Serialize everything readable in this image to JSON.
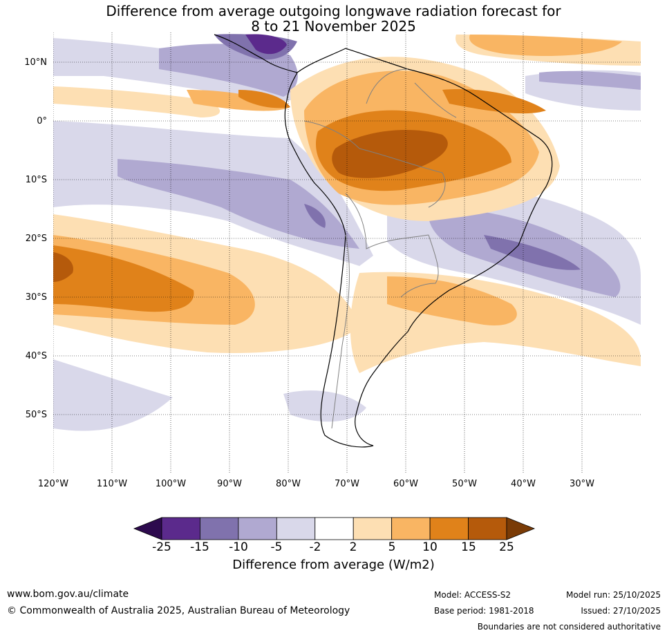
{
  "title": {
    "line1": "Difference from average outgoing longwave radiation forecast for",
    "line2": "8 to 21 November 2025"
  },
  "map": {
    "lat_labels": [
      "10°N",
      "0°",
      "10°S",
      "20°S",
      "30°S",
      "40°S",
      "50°S"
    ],
    "lon_labels": [
      "120°W",
      "110°W",
      "100°W",
      "90°W",
      "80°W",
      "70°W",
      "60°W",
      "50°W",
      "40°W",
      "30°W"
    ]
  },
  "colorbar": {
    "ticks": [
      "-25",
      "-15",
      "-10",
      "-5",
      "-2",
      "2",
      "5",
      "10",
      "15",
      "25"
    ],
    "colors": [
      "#2d0a4e",
      "#5b2a8c",
      "#8072ad",
      "#b0a9d1",
      "#d9d8ea",
      "#ffffff",
      "#fddfb3",
      "#f9b563",
      "#e0821a",
      "#b55a0b",
      "#7a3b06"
    ],
    "label": "Difference from average (W/m2)"
  },
  "footer": {
    "website": "www.bom.gov.au/climate",
    "copyright": "© Commonwealth of Australia 2025, Australian Bureau of Meteorology",
    "model": "Model: ACCESS-S2",
    "base_period": "Base period: 1981-2018",
    "model_run": "Model run: 25/10/2025",
    "issued": "Issued: 27/10/2025",
    "disclaimer": "Boundaries are not considered authoritative"
  }
}
